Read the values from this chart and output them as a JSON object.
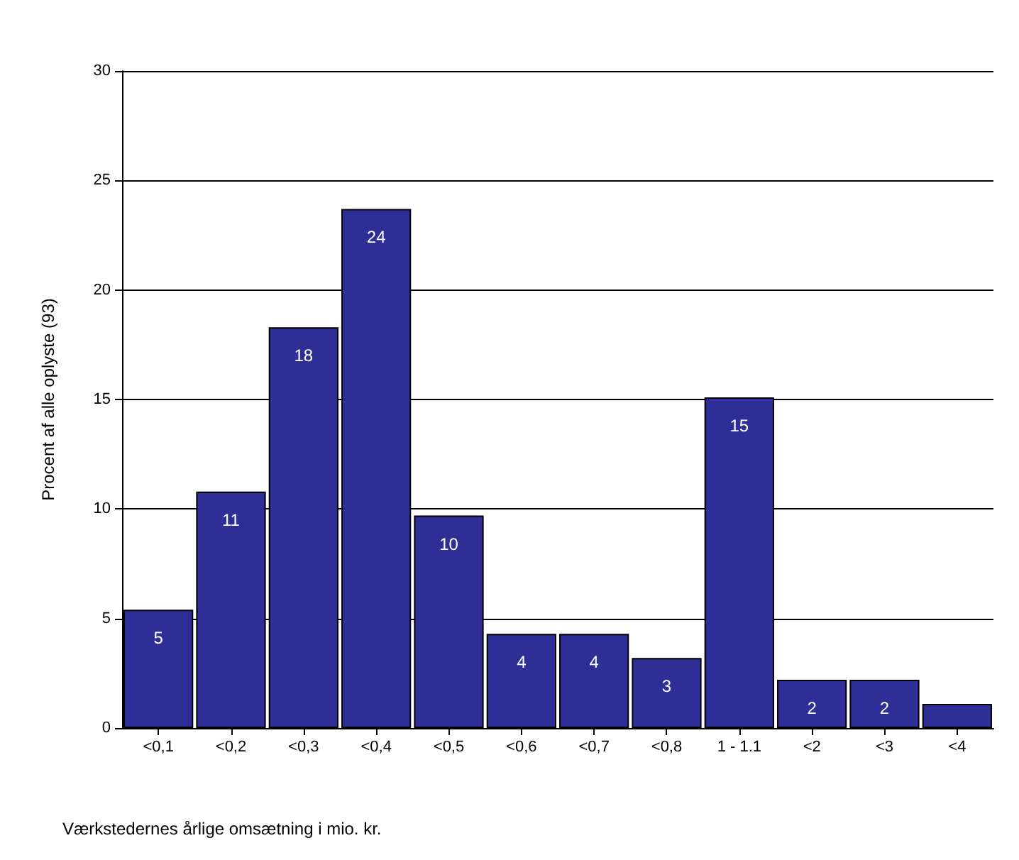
{
  "chart_data": {
    "type": "bar",
    "xlabel": "Værkstedernes årlige omsætning i mio. kr.",
    "ylabel": "Procent af alle oplyste (93)",
    "categories": [
      "<0,1",
      "<0,2",
      "<0,3",
      "<0,4",
      "<0,5",
      "<0,6",
      "<0,7",
      "<0,8",
      "1 - 1.1",
      "<2",
      "<3",
      "<4"
    ],
    "values": [
      5.4,
      10.8,
      18.3,
      23.7,
      9.7,
      4.3,
      4.3,
      3.2,
      15.1,
      2.2,
      2.2,
      1.1
    ],
    "value_labels": [
      "5",
      "11",
      "18",
      "24",
      "10",
      "4",
      "4",
      "3",
      "15",
      "2",
      "2",
      null
    ],
    "color": "#2e2e96",
    "ylim": [
      0,
      30
    ],
    "yticks": [
      0,
      5,
      10,
      15,
      20,
      25,
      30
    ],
    "grid": "y"
  }
}
